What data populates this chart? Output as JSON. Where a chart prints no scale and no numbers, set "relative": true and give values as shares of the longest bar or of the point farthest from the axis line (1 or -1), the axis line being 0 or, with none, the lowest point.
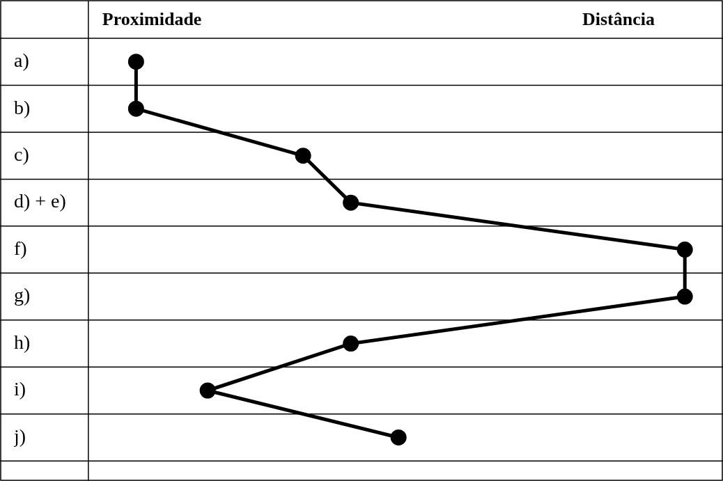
{
  "chart_data": {
    "type": "line",
    "orientation": "horizontal",
    "relative": true,
    "categories": [
      "a)",
      "b)",
      "c)",
      "d) + e)",
      "f)",
      "g)",
      "h)",
      "i)",
      "j)"
    ],
    "series": [
      {
        "color": "#000000",
        "values": [
          0.08,
          0.08,
          0.36,
          0.44,
          1,
          1,
          0.44,
          0.2,
          0.52
        ]
      }
    ],
    "annotations": [
      "Proximidade",
      "Distância"
    ],
    "marker": "circle",
    "legend": false,
    "grid": "y"
  }
}
